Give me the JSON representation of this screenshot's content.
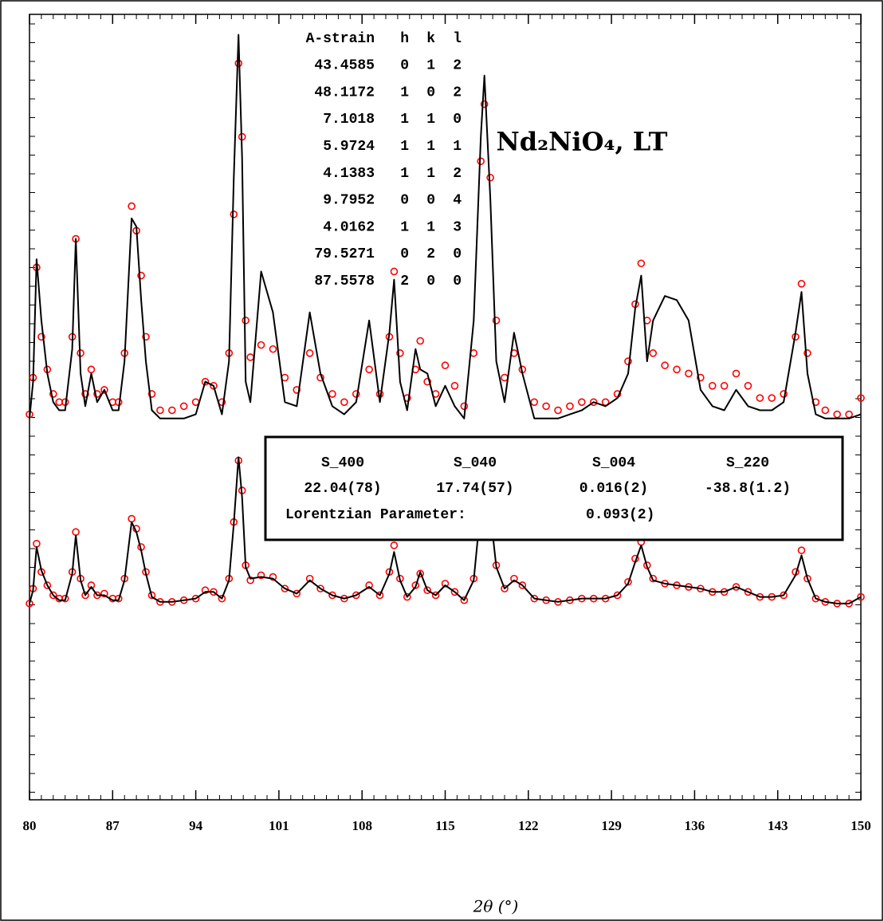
{
  "chart_data": [
    {
      "type": "line",
      "title": "Nd₂NiO₄, LT",
      "annotation": {
        "columns": [
          "A-strain",
          "h",
          "k",
          "l"
        ],
        "rows": [
          [
            "43.4585",
            "0",
            "1",
            "2"
          ],
          [
            "48.1172",
            "1",
            "0",
            "2"
          ],
          [
            "7.1018",
            "1",
            "1",
            "0"
          ],
          [
            "5.9724",
            "1",
            "1",
            "1"
          ],
          [
            "4.1383",
            "1",
            "1",
            "2"
          ],
          [
            "9.7952",
            "0",
            "0",
            "4"
          ],
          [
            "4.0162",
            "1",
            "1",
            "3"
          ],
          [
            "79.5271",
            "0",
            "2",
            "0"
          ],
          [
            "87.5578",
            "2",
            "0",
            "0"
          ]
        ]
      },
      "xlim": [
        80,
        150
      ],
      "xticks": [
        80,
        87,
        94,
        101,
        108,
        115,
        122,
        129,
        136,
        143,
        150
      ],
      "ylim": [
        -1,
        100
      ],
      "x": [
        80,
        80.3,
        80.6,
        81,
        81.5,
        82,
        82.5,
        83,
        83.6,
        83.9,
        84.3,
        84.7,
        85.2,
        85.7,
        86.3,
        87,
        87.5,
        88,
        88.6,
        89,
        89.4,
        89.8,
        90.3,
        91,
        92,
        93,
        94,
        94.8,
        95.5,
        96.2,
        96.8,
        97.2,
        97.6,
        97.9,
        98.2,
        98.6,
        99.5,
        100.5,
        101.5,
        102.5,
        103.6,
        104.5,
        105.5,
        106.5,
        107.5,
        108.6,
        109.5,
        110.3,
        110.7,
        111.2,
        111.8,
        112.5,
        112.9,
        113.5,
        114.2,
        115,
        115.8,
        116.6,
        117.4,
        118,
        118.3,
        118.8,
        119.3,
        120,
        120.8,
        121.5,
        122.5,
        123.5,
        124.5,
        125.5,
        126.5,
        127.5,
        128.5,
        129.5,
        130.4,
        131,
        131.5,
        132,
        132.5,
        133.5,
        134.5,
        135.5,
        136.5,
        137.5,
        138.5,
        139.5,
        140.5,
        141.5,
        142.5,
        143.5,
        144.5,
        145,
        145.5,
        146.2,
        147,
        148,
        149,
        150
      ],
      "series": [
        {
          "style": "markers",
          "color": "#ff0000",
          "values": [
            2,
            11,
            38,
            21,
            13,
            7,
            5,
            5,
            21,
            45,
            17,
            7,
            13,
            7,
            8,
            5,
            5,
            17,
            53,
            47,
            36,
            21,
            7,
            3,
            3,
            4,
            5,
            10,
            9,
            5,
            17,
            51,
            88,
            70,
            25,
            16,
            19,
            18,
            11,
            8,
            17,
            11,
            7,
            5,
            7,
            13,
            7,
            21,
            37,
            17,
            6,
            13,
            20,
            10,
            7,
            14,
            9,
            4,
            17,
            64,
            78,
            60,
            25,
            11,
            17,
            13,
            5,
            4,
            3,
            4,
            5,
            5,
            5,
            7,
            15,
            29,
            39,
            25,
            17,
            14,
            13,
            12,
            11,
            9,
            9,
            12,
            9,
            6,
            6,
            7,
            21,
            34,
            17,
            5,
            3,
            2,
            2,
            6
          ]
        },
        {
          "style": "line",
          "color": "#000000",
          "values": [
            1,
            10,
            40,
            25,
            12,
            5,
            3,
            3,
            18,
            45,
            12,
            4,
            12,
            5,
            8,
            3,
            3,
            15,
            50,
            48,
            30,
            15,
            3,
            1,
            1,
            1,
            2,
            10,
            9,
            2,
            15,
            60,
            95,
            65,
            10,
            5,
            37,
            27,
            5,
            4,
            27,
            12,
            4,
            2,
            5,
            25,
            5,
            22,
            35,
            10,
            3,
            18,
            13,
            12,
            4,
            9,
            4,
            1,
            25,
            70,
            85,
            55,
            15,
            5,
            22,
            12,
            1,
            1,
            1,
            2,
            3,
            5,
            4,
            6,
            12,
            28,
            36,
            15,
            25,
            31,
            30,
            25,
            8,
            4,
            3,
            8,
            4,
            3,
            3,
            5,
            22,
            32,
            12,
            2,
            1,
            1,
            1,
            2
          ]
        }
      ]
    },
    {
      "type": "line",
      "xlabel": "2θ (°)",
      "annotation": {
        "columns": [
          "S_400",
          "S_040",
          "S_004",
          "S_220"
        ],
        "values": [
          "22.04(78)",
          "17.74(57)",
          "0.016(2)",
          "-38.8(1.2)"
        ],
        "note_label": "Lorentzian Parameter:",
        "note_value": "0.093(2)"
      },
      "xlim": [
        80,
        150
      ],
      "xticks": [
        80,
        87,
        94,
        101,
        108,
        115,
        122,
        129,
        136,
        143,
        150
      ],
      "ylim": [
        -116,
        106
      ],
      "x": [
        80,
        80.3,
        80.6,
        81,
        81.5,
        82,
        82.5,
        83,
        83.6,
        83.9,
        84.3,
        84.7,
        85.2,
        85.7,
        86.3,
        87,
        87.5,
        88,
        88.6,
        89,
        89.4,
        89.8,
        90.3,
        91,
        92,
        93,
        94,
        94.8,
        95.5,
        96.2,
        96.8,
        97.2,
        97.6,
        97.9,
        98.2,
        98.6,
        99.5,
        100.5,
        101.5,
        102.5,
        103.6,
        104.5,
        105.5,
        106.5,
        107.5,
        108.6,
        109.5,
        110.3,
        110.7,
        111.2,
        111.8,
        112.5,
        112.9,
        113.5,
        114.2,
        115,
        115.8,
        116.6,
        117.4,
        118,
        118.3,
        118.8,
        119.3,
        120,
        120.8,
        121.5,
        122.5,
        123.5,
        124.5,
        125.5,
        126.5,
        127.5,
        128.5,
        129.5,
        130.4,
        131,
        131.5,
        132,
        132.5,
        133.5,
        134.5,
        135.5,
        136.5,
        137.5,
        138.5,
        139.5,
        140.5,
        141.5,
        142.5,
        143.5,
        144.5,
        145,
        145.5,
        146.2,
        147,
        148,
        149,
        150
      ],
      "series": [
        {
          "style": "markers",
          "color": "#ff0000",
          "values": [
            2,
            11,
            38,
            21,
            13,
            7,
            5,
            5,
            21,
            45,
            17,
            7,
            13,
            7,
            8,
            5,
            5,
            17,
            53,
            47,
            36,
            21,
            7,
            3,
            3,
            4,
            5,
            10,
            9,
            5,
            17,
            51,
            88,
            70,
            25,
            16,
            19,
            18,
            11,
            8,
            17,
            11,
            7,
            5,
            7,
            13,
            7,
            21,
            37,
            17,
            6,
            13,
            20,
            10,
            7,
            14,
            9,
            4,
            17,
            64,
            78,
            60,
            25,
            11,
            17,
            13,
            5,
            4,
            3,
            4,
            5,
            5,
            5,
            7,
            15,
            29,
            39,
            25,
            17,
            14,
            13,
            12,
            11,
            9,
            9,
            12,
            9,
            6,
            6,
            7,
            21,
            34,
            17,
            5,
            3,
            2,
            2,
            6
          ]
        },
        {
          "style": "line",
          "color": "#000000",
          "values": [
            2,
            10,
            36,
            22,
            13,
            7,
            4,
            4,
            20,
            43,
            16,
            7,
            12,
            7,
            7,
            4,
            4,
            16,
            51,
            45,
            34,
            20,
            6,
            3,
            3,
            4,
            5,
            9,
            9,
            5,
            16,
            50,
            90,
            66,
            24,
            17,
            18,
            17,
            11,
            8,
            16,
            11,
            7,
            5,
            7,
            12,
            7,
            20,
            33,
            16,
            6,
            12,
            21,
            10,
            7,
            13,
            9,
            4,
            16,
            60,
            73,
            57,
            24,
            11,
            16,
            13,
            5,
            4,
            3,
            4,
            5,
            5,
            5,
            7,
            14,
            27,
            37,
            24,
            16,
            14,
            13,
            12,
            11,
            9,
            9,
            12,
            9,
            6,
            6,
            7,
            19,
            31,
            17,
            5,
            3,
            2,
            2,
            6
          ]
        }
      ]
    }
  ]
}
